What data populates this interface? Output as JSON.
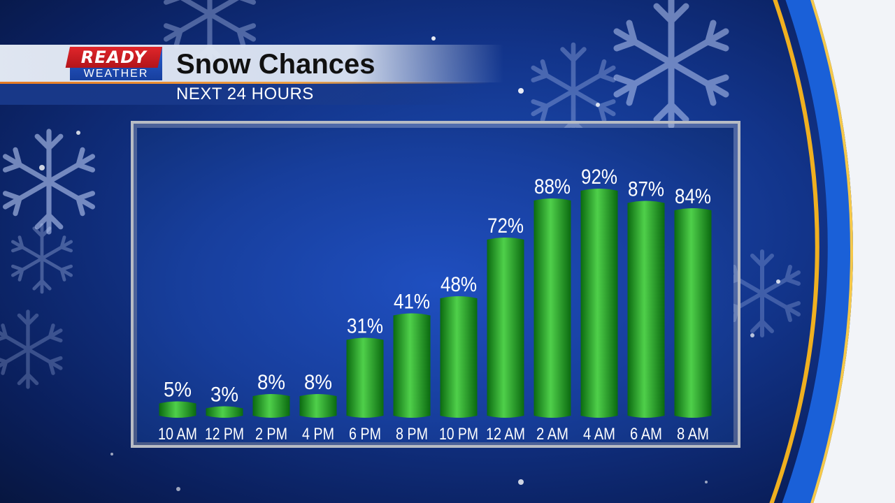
{
  "header": {
    "logo_top": "READY",
    "logo_bottom": "WEATHER",
    "title": "Snow Chances",
    "subtitle": "NEXT 24 HOURS"
  },
  "colors": {
    "bar_green": "#1fa41f",
    "bar_dark": "#0b6a10",
    "bar_light": "#4fd04a"
  },
  "chart_data": {
    "type": "bar",
    "title": "Snow Chances",
    "subtitle": "NEXT 24 HOURS",
    "categories": [
      "10 AM",
      "12 PM",
      "2 PM",
      "4 PM",
      "6 PM",
      "8 PM",
      "10 PM",
      "12 AM",
      "2 AM",
      "4 AM",
      "6 AM",
      "8 AM"
    ],
    "values": [
      5,
      3,
      8,
      8,
      31,
      41,
      48,
      72,
      88,
      92,
      87,
      84
    ],
    "data_labels": [
      "5%",
      "3%",
      "8%",
      "8%",
      "31%",
      "41%",
      "48%",
      "72%",
      "88%",
      "92%",
      "87%",
      "84%"
    ],
    "ylim": [
      0,
      100
    ],
    "grid": false,
    "legend": "none"
  }
}
